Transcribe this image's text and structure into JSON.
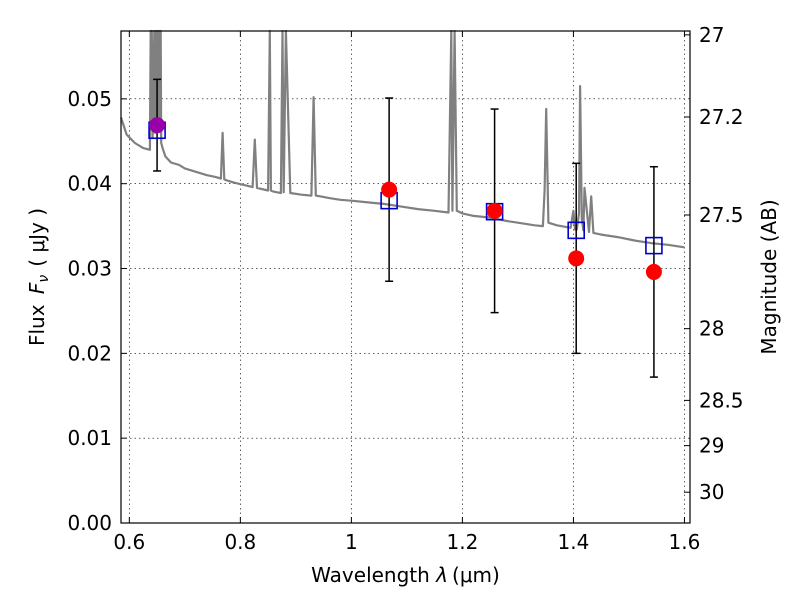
{
  "chart_data": {
    "type": "scatter",
    "xlabel": "Wavelength λ (μm)",
    "xlabel_parts": {
      "prefix": "Wavelength ",
      "symbol": "λ",
      "unit": "(μm)"
    },
    "ylabel": "Flux F_ν (μJy)",
    "ylabel_parts": {
      "prefix": "Flux ",
      "symbol": "F",
      "sub": "ν",
      "unit": "( μJy )"
    },
    "y2label": "Magnitude (AB)",
    "xlim": [
      0.585,
      1.61
    ],
    "ylim": [
      0.0,
      0.058
    ],
    "x_ticks": [
      0.6,
      0.8,
      1.0,
      1.2,
      1.4,
      1.6
    ],
    "x_tick_labels": [
      "0.6",
      "0.8",
      "1",
      "1.2",
      "1.4",
      "1.6"
    ],
    "y_ticks": [
      0.0,
      0.01,
      0.02,
      0.03,
      0.04,
      0.05
    ],
    "y_tick_labels": [
      "0.00",
      "0.01",
      "0.02",
      "0.03",
      "0.04",
      "0.05"
    ],
    "y2_ticks": [
      27,
      27.2,
      27.5,
      28,
      28.5,
      29,
      30
    ],
    "y2_tick_labels": [
      "27",
      "27.2",
      "27.5",
      "28",
      "28.5",
      "29",
      "30"
    ],
    "grid": true,
    "colors": {
      "model": "#808080",
      "observed": "#ff0000",
      "model_photometry": "#0000cc",
      "blend": "#9900aa",
      "errorbar": "#000000"
    },
    "model_spectrum": {
      "x": [
        0.585,
        0.595,
        0.61,
        0.625,
        0.637,
        0.6385,
        0.6395,
        0.6405,
        0.642,
        0.645,
        0.6465,
        0.6475,
        0.649,
        0.6505,
        0.652,
        0.6535,
        0.655,
        0.6565,
        0.6575,
        0.66,
        0.665,
        0.675,
        0.69,
        0.7,
        0.72,
        0.74,
        0.755,
        0.765,
        0.768,
        0.771,
        0.775,
        0.79,
        0.81,
        0.822,
        0.826,
        0.83,
        0.85,
        0.853,
        0.855,
        0.858,
        0.865,
        0.873,
        0.876,
        0.878,
        0.882,
        0.89,
        0.91,
        0.928,
        0.932,
        0.936,
        0.945,
        0.96,
        0.98,
        1.0,
        1.03,
        1.06,
        1.09,
        1.12,
        1.15,
        1.175,
        1.18,
        1.182,
        1.186,
        1.19,
        1.2,
        1.22,
        1.25,
        1.28,
        1.31,
        1.33,
        1.345,
        1.348,
        1.351,
        1.355,
        1.37,
        1.395,
        1.4,
        1.403,
        1.406,
        1.41,
        1.412,
        1.415,
        1.418,
        1.42,
        1.428,
        1.432,
        1.436,
        1.45,
        1.48,
        1.51,
        1.54,
        1.57,
        1.6
      ],
      "y": [
        0.0478,
        0.0458,
        0.0448,
        0.0442,
        0.044,
        0.0585,
        0.0478,
        0.0585,
        0.0455,
        0.0585,
        0.046,
        0.0585,
        0.047,
        0.0585,
        0.047,
        0.0585,
        0.047,
        0.0585,
        0.0448,
        0.0442,
        0.0432,
        0.0425,
        0.0422,
        0.0418,
        0.0414,
        0.041,
        0.0408,
        0.0406,
        0.046,
        0.0405,
        0.0404,
        0.0401,
        0.0398,
        0.0396,
        0.0452,
        0.0395,
        0.0392,
        0.0585,
        0.0392,
        0.0391,
        0.039,
        0.0389,
        0.0585,
        0.039,
        0.0585,
        0.0389,
        0.0387,
        0.0386,
        0.0502,
        0.0386,
        0.0385,
        0.0383,
        0.0381,
        0.038,
        0.0378,
        0.0376,
        0.0373,
        0.037,
        0.0368,
        0.0366,
        0.0585,
        0.0368,
        0.0585,
        0.0368,
        0.0365,
        0.0362,
        0.036,
        0.0356,
        0.0353,
        0.0351,
        0.035,
        0.0392,
        0.0488,
        0.0354,
        0.0351,
        0.0348,
        0.0368,
        0.0346,
        0.0346,
        0.0365,
        0.0515,
        0.0358,
        0.0345,
        0.0395,
        0.0343,
        0.0385,
        0.0342,
        0.034,
        0.0337,
        0.0333,
        0.033,
        0.0328,
        0.0325
      ]
    },
    "observed": {
      "x": [
        0.65,
        1.068,
        1.258,
        1.405,
        1.545
      ],
      "y": [
        0.0469,
        0.0393,
        0.0368,
        0.0312,
        0.0296
      ],
      "y_err": [
        0.0054,
        0.0108,
        0.012,
        0.0112,
        0.0124
      ]
    },
    "model_photometry": {
      "x": [
        0.65,
        1.068,
        1.258,
        1.405,
        1.545
      ],
      "y": [
        0.0463,
        0.038,
        0.0367,
        0.0345,
        0.0327
      ]
    }
  }
}
